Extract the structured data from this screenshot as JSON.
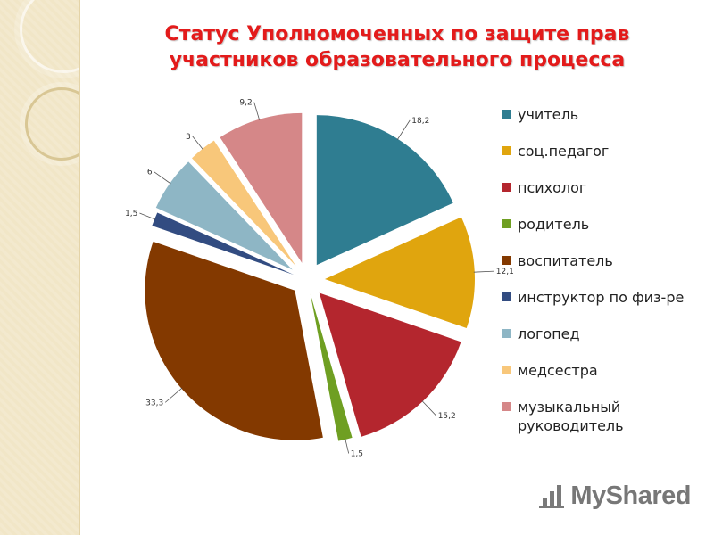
{
  "chart_data": {
    "type": "pie",
    "title": "Статус Уполномоченных по защите прав участников образовательного процесса",
    "legend_position": "right",
    "data_labels": [
      "18,2",
      "12,1",
      "15,2",
      "1,5",
      "33,3",
      "1,5",
      "6",
      "3",
      "9,2"
    ],
    "series": [
      {
        "values": [
          18.2,
          12.1,
          15.2,
          1.5,
          33.3,
          1.5,
          6,
          3,
          9.2
        ]
      }
    ],
    "categories": [
      "учитель",
      "соц.педагог",
      "психолог",
      "родитель",
      "воспитатель",
      "инструктор по физ-ре",
      "логопед",
      "медсестра",
      "музыкальный руководитель"
    ],
    "colors": [
      "#2f7d91",
      "#e0a50e",
      "#b4262e",
      "#6f9f22",
      "#833900",
      "#324c81",
      "#8eb6c5",
      "#f8c77a",
      "#d58788"
    ]
  },
  "watermark": {
    "text": "MyShared"
  }
}
